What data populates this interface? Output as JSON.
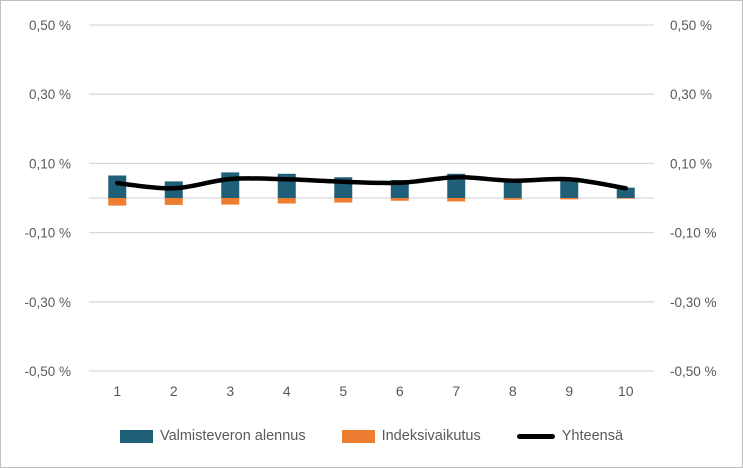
{
  "chart_data": {
    "type": "bar",
    "subtype": "combo-stacked-bars-with-smooth-line",
    "title": "",
    "xlabel": "",
    "ylabel": "",
    "categories": [
      "1",
      "2",
      "3",
      "4",
      "5",
      "6",
      "7",
      "8",
      "9",
      "10"
    ],
    "series": [
      {
        "name": "Valmisteveron alennus",
        "type": "bar",
        "color": "#1f5f78",
        "values": [
          0.065,
          0.048,
          0.074,
          0.07,
          0.06,
          0.052,
          0.07,
          0.055,
          0.058,
          0.03
        ]
      },
      {
        "name": "Indeksivaikutus",
        "type": "bar",
        "color": "#ed7d31",
        "values": [
          -0.022,
          -0.02,
          -0.019,
          -0.016,
          -0.013,
          -0.008,
          -0.01,
          -0.005,
          -0.004,
          -0.002
        ]
      },
      {
        "name": "Yhteensä",
        "type": "line",
        "color": "#000000",
        "values": [
          0.043,
          0.028,
          0.055,
          0.054,
          0.047,
          0.044,
          0.06,
          0.05,
          0.054,
          0.028
        ]
      }
    ],
    "ylim": [
      -0.5,
      0.5
    ],
    "y_ticks": [
      {
        "value": 0.5,
        "label": "0,50 %"
      },
      {
        "value": 0.3,
        "label": "0,30 %"
      },
      {
        "value": 0.1,
        "label": "0,10 %"
      },
      {
        "value": -0.1,
        "label": "-0,10 %"
      },
      {
        "value": -0.3,
        "label": "-0,30 %"
      },
      {
        "value": -0.5,
        "label": "-0,50 %"
      }
    ],
    "zero_line": true,
    "grid": true,
    "gridline_color": "#d9d9d9",
    "tick_label_color": "#595959",
    "axes_on_both_sides": true,
    "legend_position": "bottom"
  }
}
